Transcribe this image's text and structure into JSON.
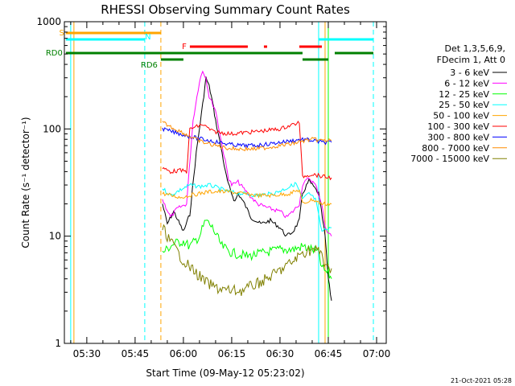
{
  "chart_data": {
    "type": "line",
    "title": "RHESSI Observing Summary Count Rates",
    "xlabel": "Start Time (09-May-12 05:23:02)",
    "ylabel": "Count Rate (s⁻¹ detector⁻¹)",
    "y_scale": "log",
    "ylim": [
      1,
      1000
    ],
    "y_ticks": [
      {
        "value": 1,
        "label": "1"
      },
      {
        "value": 10,
        "label": "10"
      },
      {
        "value": 100,
        "label": "100"
      },
      {
        "value": 1000,
        "label": "1000"
      }
    ],
    "x_unit": "time (HH:MM, 09-May-12)",
    "xlim": [
      "05:23:02",
      "07:03"
    ],
    "x_ticks": [
      "05:30",
      "05:45",
      "06:00",
      "06:15",
      "06:30",
      "06:45",
      "07:00"
    ],
    "grid": false,
    "legend_position": "right",
    "legend_header": [
      "Det 1,3,5,6,9,",
      "FDecim 1, Att 0"
    ],
    "series": [
      {
        "name": "3 - 6 keV",
        "color": "#000000",
        "points": [
          [
            "05:53:30",
            20
          ],
          [
            "05:55",
            13
          ],
          [
            "05:57",
            17
          ],
          [
            "06:00",
            11
          ],
          [
            "06:02",
            16
          ],
          [
            "06:04",
            60
          ],
          [
            "06:06",
            170
          ],
          [
            "06:07",
            300
          ],
          [
            "06:08",
            250
          ],
          [
            "06:09",
            180
          ],
          [
            "06:10",
            120
          ],
          [
            "06:12",
            60
          ],
          [
            "06:13",
            40
          ],
          [
            "06:14",
            30
          ],
          [
            "06:15",
            25
          ],
          [
            "06:16",
            21
          ],
          [
            "06:17",
            25
          ],
          [
            "06:19",
            20
          ],
          [
            "06:21",
            15
          ],
          [
            "06:24",
            13
          ],
          [
            "06:27",
            14
          ],
          [
            "06:30",
            12
          ],
          [
            "06:32",
            10
          ],
          [
            "06:34",
            11
          ],
          [
            "06:36",
            14
          ],
          [
            "06:37",
            25
          ],
          [
            "06:39",
            33
          ],
          [
            "06:40",
            30
          ],
          [
            "06:42",
            25
          ],
          [
            "06:44",
            10
          ],
          [
            "06:45",
            4
          ],
          [
            "06:46",
            2.5
          ]
        ]
      },
      {
        "name": "6 - 12 keV",
        "color": "#ff00ff",
        "points": [
          [
            "05:53:30",
            22
          ],
          [
            "05:56",
            15
          ],
          [
            "05:58",
            18
          ],
          [
            "06:01",
            20
          ],
          [
            "06:03",
            120
          ],
          [
            "06:05",
            280
          ],
          [
            "06:06",
            350
          ],
          [
            "06:07",
            300
          ],
          [
            "06:08",
            200
          ],
          [
            "06:10",
            150
          ],
          [
            "06:12",
            70
          ],
          [
            "06:13",
            50
          ],
          [
            "06:14",
            35
          ],
          [
            "06:15",
            30
          ],
          [
            "06:17",
            32
          ],
          [
            "06:20",
            25
          ],
          [
            "06:23",
            20
          ],
          [
            "06:27",
            18
          ],
          [
            "06:30",
            17
          ],
          [
            "06:32",
            15
          ],
          [
            "06:34",
            17
          ],
          [
            "06:36",
            20
          ],
          [
            "06:37",
            30
          ],
          [
            "06:39",
            35
          ],
          [
            "06:41",
            30
          ],
          [
            "06:43",
            20
          ],
          [
            "06:44",
            12
          ],
          [
            "06:46",
            10
          ]
        ]
      },
      {
        "name": "12 - 25 keV",
        "color": "#00ff00",
        "points": [
          [
            "05:53:30",
            7
          ],
          [
            "05:57",
            8.5
          ],
          [
            "06:00",
            9
          ],
          [
            "06:02",
            8
          ],
          [
            "06:05",
            10
          ],
          [
            "06:07",
            14
          ],
          [
            "06:09",
            12
          ],
          [
            "06:12",
            8
          ],
          [
            "06:15",
            7
          ],
          [
            "06:20",
            6.5
          ],
          [
            "06:25",
            7
          ],
          [
            "06:30",
            7.5
          ],
          [
            "06:34",
            7.5
          ],
          [
            "06:37",
            8
          ],
          [
            "06:40",
            7.5
          ],
          [
            "06:42",
            7
          ],
          [
            "06:43",
            5
          ],
          [
            "06:45",
            4.5
          ],
          [
            "06:46",
            4
          ]
        ]
      },
      {
        "name": "25 - 50 keV",
        "color": "#00ffff",
        "points": [
          [
            "05:53:30",
            28
          ],
          [
            "05:56",
            24
          ],
          [
            "05:59",
            27
          ],
          [
            "06:02",
            30
          ],
          [
            "06:05",
            29
          ],
          [
            "06:08",
            30
          ],
          [
            "06:11",
            28
          ],
          [
            "06:14",
            26
          ],
          [
            "06:18",
            25
          ],
          [
            "06:23",
            24
          ],
          [
            "06:28",
            25
          ],
          [
            "06:32",
            28
          ],
          [
            "06:35",
            31
          ],
          [
            "06:37",
            22
          ],
          [
            "06:39",
            25
          ],
          [
            "06:41",
            22
          ],
          [
            "06:43",
            11
          ],
          [
            "06:45",
            12
          ],
          [
            "06:46",
            12
          ]
        ]
      },
      {
        "name": "50 - 100 keV",
        "color": "#ffa500",
        "points": [
          [
            "05:53:30",
            25
          ],
          [
            "05:56",
            24
          ],
          [
            "05:59",
            23
          ],
          [
            "06:02",
            24
          ],
          [
            "06:05",
            25
          ],
          [
            "06:08",
            26
          ],
          [
            "06:11",
            26
          ],
          [
            "06:14",
            26
          ],
          [
            "06:18",
            25
          ],
          [
            "06:23",
            24
          ],
          [
            "06:28",
            24
          ],
          [
            "06:33",
            25
          ],
          [
            "06:36",
            27
          ],
          [
            "06:37",
            20
          ],
          [
            "06:40",
            22
          ],
          [
            "06:43",
            20
          ],
          [
            "06:46",
            20
          ]
        ]
      },
      {
        "name": "100 - 300 keV",
        "color": "#ff0000",
        "points": [
          [
            "05:53:30",
            43
          ],
          [
            "05:56",
            40
          ],
          [
            "05:59",
            41
          ],
          [
            "06:01",
            40
          ],
          [
            "06:02",
            100
          ],
          [
            "06:06",
            110
          ],
          [
            "06:09",
            95
          ],
          [
            "06:12",
            92
          ],
          [
            "06:15",
            90
          ],
          [
            "06:18",
            92
          ],
          [
            "06:22",
            94
          ],
          [
            "06:26",
            97
          ],
          [
            "06:30",
            100
          ],
          [
            "06:34",
            110
          ],
          [
            "06:36",
            115
          ],
          [
            "06:37",
            36
          ],
          [
            "06:40",
            38
          ],
          [
            "06:43",
            36
          ],
          [
            "06:46",
            35
          ]
        ]
      },
      {
        "name": "300 - 800 keV",
        "color": "#0000ff",
        "points": [
          [
            "05:53:30",
            100
          ],
          [
            "05:56",
            95
          ],
          [
            "05:59",
            90
          ],
          [
            "06:02",
            85
          ],
          [
            "06:06",
            80
          ],
          [
            "06:10",
            76
          ],
          [
            "06:14",
            72
          ],
          [
            "06:18",
            70
          ],
          [
            "06:22",
            70
          ],
          [
            "06:26",
            72
          ],
          [
            "06:30",
            75
          ],
          [
            "06:34",
            78
          ],
          [
            "06:37",
            80
          ],
          [
            "06:40",
            78
          ],
          [
            "06:43",
            75
          ],
          [
            "06:46",
            75
          ]
        ]
      },
      {
        "name": "800 - 7000 keV",
        "color": "#ff8c00",
        "points": [
          [
            "05:53:30",
            115
          ],
          [
            "05:56",
            105
          ],
          [
            "05:59",
            95
          ],
          [
            "06:02",
            85
          ],
          [
            "06:06",
            75
          ],
          [
            "06:10",
            70
          ],
          [
            "06:14",
            66
          ],
          [
            "06:18",
            65
          ],
          [
            "06:22",
            65
          ],
          [
            "06:26",
            67
          ],
          [
            "06:30",
            70
          ],
          [
            "06:34",
            73
          ],
          [
            "06:37",
            77
          ],
          [
            "06:40",
            80
          ],
          [
            "06:43",
            78
          ],
          [
            "06:46",
            78
          ]
        ]
      },
      {
        "name": "7000 - 15000 keV",
        "color": "#808000",
        "points": [
          [
            "05:53:30",
            12
          ],
          [
            "05:55",
            10
          ],
          [
            "05:57",
            8
          ],
          [
            "05:59",
            6.5
          ],
          [
            "06:01",
            5.5
          ],
          [
            "06:04",
            4.5
          ],
          [
            "06:07",
            3.7
          ],
          [
            "06:10",
            3.3
          ],
          [
            "06:14",
            3.1
          ],
          [
            "06:18",
            3.1
          ],
          [
            "06:22",
            3.5
          ],
          [
            "06:26",
            4
          ],
          [
            "06:30",
            4.8
          ],
          [
            "06:34",
            5.8
          ],
          [
            "06:37",
            7
          ],
          [
            "06:40",
            7.5
          ],
          [
            "06:43",
            7
          ],
          [
            "06:44",
            5
          ],
          [
            "06:46",
            5
          ]
        ]
      }
    ],
    "vertical_markers": [
      {
        "time": "05:25",
        "color": "#00ffff",
        "style": "solid"
      },
      {
        "time": "05:26",
        "color": "#ffa500",
        "style": "solid"
      },
      {
        "time": "05:48",
        "color": "#00ffff",
        "style": "dashed"
      },
      {
        "time": "05:53",
        "color": "#ffa500",
        "style": "dashed"
      },
      {
        "time": "06:42",
        "color": "#00ffff",
        "style": "solid"
      },
      {
        "time": "06:44",
        "color": "#ffa500",
        "style": "solid"
      },
      {
        "time": "06:59",
        "color": "#00ffff",
        "style": "dashed"
      },
      {
        "time": "06:45",
        "color": "#00ff00",
        "style": "solid"
      }
    ],
    "flag_bars": [
      {
        "label": "S",
        "color": "#ffa500",
        "row": 1,
        "segments": [
          [
            "05:23:30",
            "05:53"
          ]
        ]
      },
      {
        "label": "N",
        "color": "#00ffff",
        "row": 2,
        "segments": [
          [
            "05:23:30",
            "05:48"
          ],
          [
            "06:42",
            "06:59"
          ]
        ]
      },
      {
        "label": "F",
        "color": "#ff0000",
        "row": 3,
        "segments": [
          [
            "06:02",
            "06:20"
          ],
          [
            "06:25",
            "06:26"
          ],
          [
            "06:36",
            "06:43"
          ]
        ]
      },
      {
        "label": "RD0",
        "color": "#008000",
        "row": 4,
        "segments": [
          [
            "05:23:30",
            "06:37"
          ],
          [
            "06:47",
            "06:59"
          ]
        ]
      },
      {
        "label": "RD6",
        "color": "#008000",
        "row": 5,
        "segments": [
          [
            "05:53",
            "06:00"
          ],
          [
            "06:37",
            "06:45"
          ]
        ]
      }
    ]
  },
  "stamp": "21-Oct-2021 05:28"
}
